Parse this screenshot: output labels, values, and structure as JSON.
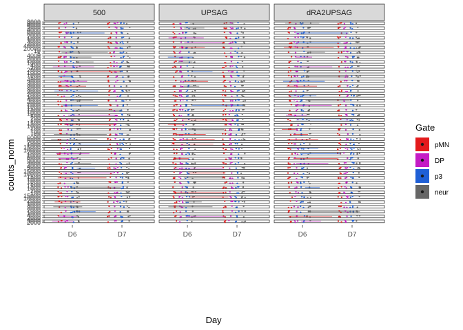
{
  "chart_data": {
    "type": "scatter",
    "facet_columns": [
      "500",
      "UPSAG",
      "dRA2UPSAG"
    ],
    "x": [
      "D6",
      "D7"
    ],
    "xlabel": "Day",
    "ylabel": "counts_norm",
    "legend": {
      "title": "Gate",
      "placement": "right",
      "entries": [
        {
          "name": "pMN",
          "color": "#e31a1c"
        },
        {
          "name": "DP",
          "color": "#c51bc5"
        },
        {
          "name": "p3",
          "color": "#1f5fd6"
        },
        {
          "name": "neur",
          "color": "#666666"
        }
      ]
    },
    "facet_rows_count": 42,
    "row_tick_labels": [
      [
        "4000",
        "6000",
        "8000"
      ],
      [
        "4000",
        "5000"
      ],
      [
        "5000",
        "6000"
      ],
      [
        "1000",
        "2000"
      ],
      [
        "2000",
        "3000"
      ],
      [
        "20000",
        "40000"
      ],
      [
        "5",
        "10"
      ],
      [
        "2000",
        "4000"
      ],
      [
        "1000",
        "2000"
      ],
      [
        "200",
        "400"
      ],
      [
        "1000",
        "2000"
      ],
      [
        "500",
        "1000"
      ],
      [
        "3000",
        "4000"
      ],
      [
        "2000",
        "3000"
      ],
      [
        "2000",
        "3000"
      ],
      [
        "1000",
        "2000"
      ],
      [
        "2000",
        "4000"
      ],
      [
        "1000",
        "2000"
      ],
      [
        "1000",
        "1500"
      ],
      [
        "500",
        "1000"
      ],
      [
        "100",
        "200"
      ],
      [
        "1000",
        "1500"
      ],
      [
        "100",
        "200"
      ],
      [
        "50",
        "100"
      ],
      [
        "5000",
        "6000"
      ],
      [
        "1000",
        "2000"
      ],
      [
        "10000",
        "15000"
      ],
      [
        "1000",
        "2000"
      ],
      [
        "5000",
        "6000"
      ],
      [
        "2000",
        "3000"
      ],
      [
        "2000",
        "4000"
      ],
      [
        "10000",
        "15000"
      ],
      [
        "1000",
        "1500"
      ],
      [
        "500",
        "1000"
      ],
      [
        "1000",
        "1500"
      ],
      [
        "100",
        "200"
      ],
      [
        "10000",
        "15000"
      ],
      [
        "1000",
        "2000"
      ],
      [
        "2000",
        "3000"
      ],
      [
        "1000",
        "2000"
      ],
      [
        "2000",
        "4000"
      ],
      [
        "2000",
        "3000",
        "4000"
      ]
    ]
  }
}
